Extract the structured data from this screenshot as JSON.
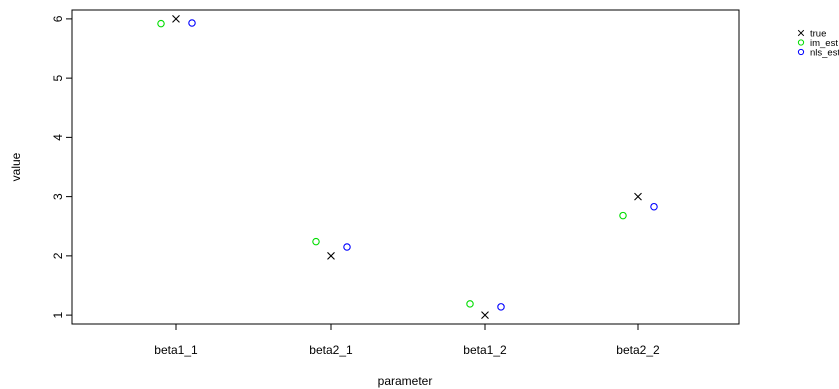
{
  "chart_data": {
    "type": "scatter",
    "title": "",
    "xlabel": "parameter",
    "ylabel": "value",
    "categories": [
      "beta1_1",
      "beta2_1",
      "beta1_2",
      "beta2_2"
    ],
    "yticks": [
      "1",
      "2",
      "3",
      "4",
      "5",
      "6"
    ],
    "ylim": [
      0.85,
      6.15
    ],
    "grid": false,
    "legend_position": "top-right, outside plot",
    "series": [
      {
        "name": "true",
        "marker": "cross",
        "color": "#000000",
        "values": [
          6.0,
          2.0,
          1.0,
          3.0
        ]
      },
      {
        "name": "im_est",
        "marker": "circle",
        "color": "#00dd00",
        "values": [
          5.92,
          2.24,
          1.19,
          2.68
        ]
      },
      {
        "name": "nls_est",
        "marker": "circle",
        "color": "#0000ff",
        "values": [
          5.93,
          2.15,
          1.14,
          2.83
        ]
      }
    ]
  }
}
